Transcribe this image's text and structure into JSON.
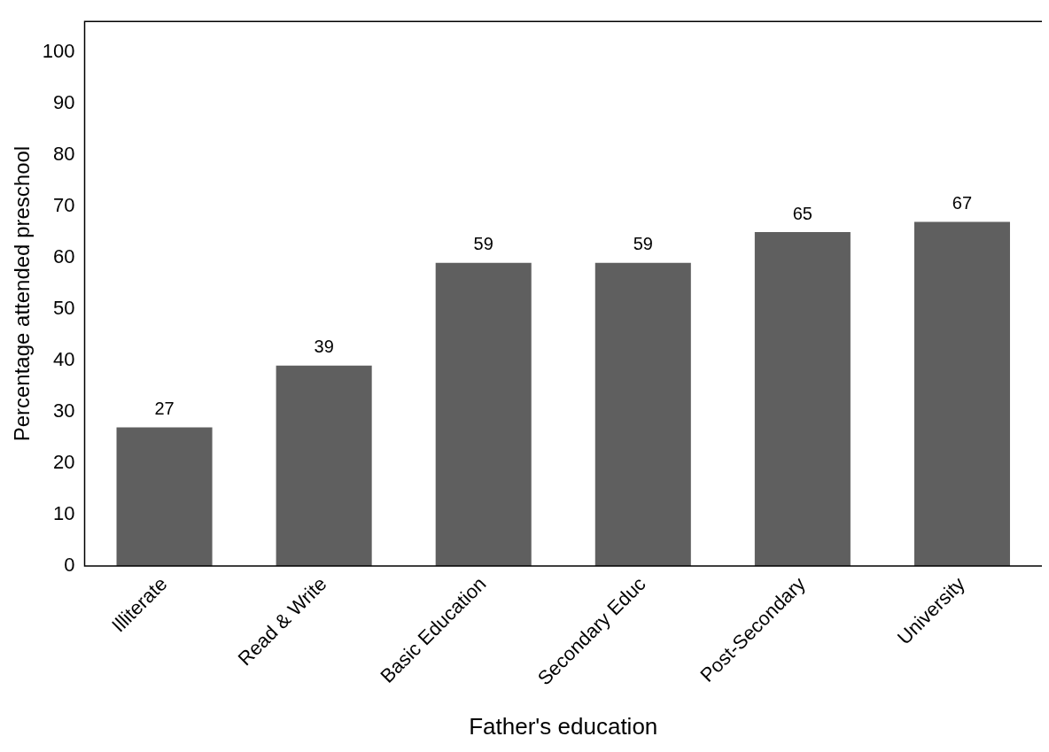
{
  "chart_data": {
    "type": "bar",
    "xlabel": "Father's education",
    "ylabel": "Percentage attended preschool",
    "categories": [
      "Illiterate",
      "Read & Write",
      "Basic Education",
      "Secondary Educ",
      "Post-Secondary",
      "University"
    ],
    "values": [
      27,
      39,
      59,
      59,
      65,
      67
    ],
    "color": "#5f5f5f",
    "value_labels": [
      "27",
      "39",
      "59",
      "59",
      "65",
      "67"
    ],
    "ylim": [
      0,
      106
    ],
    "yticks": [
      0,
      10,
      20,
      30,
      40,
      50,
      60,
      70,
      80,
      90,
      100
    ],
    "grid": false,
    "legend": false
  }
}
